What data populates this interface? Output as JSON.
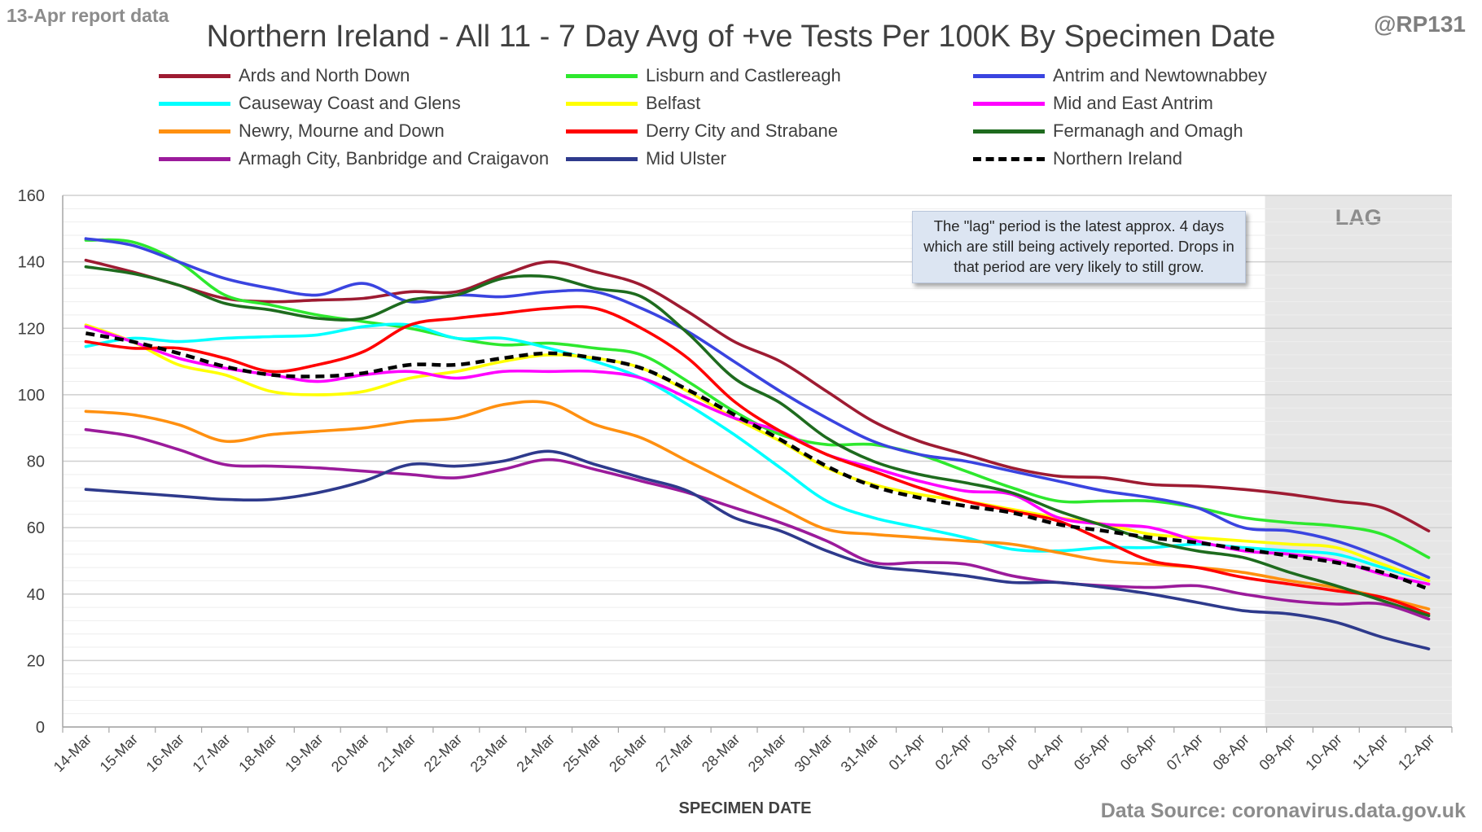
{
  "report_label": "13-Apr report data",
  "title": "Northern Ireland - All 11 - 7 Day Avg of +ve Tests Per 100K By Specimen Date",
  "handle": "@RP131",
  "source": "Data Source: coronavirus.data.gov.uk",
  "note": "The \"lag\" period is the latest approx. 4 days which are still being actively reported. Drops in that period are very likely to still grow.",
  "colors": {
    "lag_band": "#e6e6e6",
    "grid": "#d9d9d9",
    "axis": "#a6a6a6",
    "text": "#404040"
  },
  "chart_data": {
    "type": "line",
    "title": "Northern Ireland - All 11 - 7 Day Avg of +ve Tests Per 100K By Specimen Date",
    "xlabel": "SPECIMEN DATE",
    "ylabel": "",
    "ylim": [
      0,
      160
    ],
    "yticks": [
      0,
      20,
      40,
      60,
      80,
      100,
      120,
      140,
      160
    ],
    "grid": true,
    "legend_position": "top",
    "lag_band": {
      "label": "LAG",
      "from": "09-Apr",
      "to": "12-Apr"
    },
    "x": [
      "14-Mar",
      "15-Mar",
      "16-Mar",
      "17-Mar",
      "18-Mar",
      "19-Mar",
      "20-Mar",
      "21-Mar",
      "22-Mar",
      "23-Mar",
      "24-Mar",
      "25-Mar",
      "26-Mar",
      "27-Mar",
      "28-Mar",
      "29-Mar",
      "30-Mar",
      "31-Mar",
      "01-Apr",
      "02-Apr",
      "03-Apr",
      "04-Apr",
      "05-Apr",
      "06-Apr",
      "07-Apr",
      "08-Apr",
      "09-Apr",
      "10-Apr",
      "11-Apr",
      "12-Apr"
    ],
    "series": [
      {
        "name": "Ards and North Down",
        "color": "#9e1b32",
        "dashed": false,
        "values": [
          140.5,
          137,
          133,
          129,
          128,
          128.5,
          129,
          131,
          131,
          136,
          140,
          137,
          133,
          125,
          116,
          110,
          101,
          92,
          86,
          82,
          78,
          75.5,
          75,
          73,
          72.5,
          71.5,
          70,
          68,
          66,
          59
        ]
      },
      {
        "name": "Lisburn and Castlereagh",
        "color": "#2ee82e",
        "dashed": false,
        "values": [
          146.5,
          146,
          140,
          130,
          127,
          124,
          122,
          120,
          117,
          115,
          115.5,
          114,
          112,
          104,
          95,
          88,
          85,
          85,
          82,
          77,
          72,
          68,
          68,
          68,
          66,
          63,
          61.5,
          60.5,
          58,
          51
        ]
      },
      {
        "name": "Antrim and Newtownabbey",
        "color": "#3a44e0",
        "dashed": false,
        "values": [
          147,
          145,
          140,
          135,
          132,
          130,
          133.5,
          128,
          130,
          129.5,
          131,
          131,
          126,
          119,
          110,
          101,
          93,
          86,
          82,
          80,
          77,
          74,
          71,
          69,
          66,
          60,
          59,
          56,
          51,
          45
        ]
      },
      {
        "name": "Causeway Coast and Glens",
        "color": "#00ffff",
        "dashed": false,
        "values": [
          114.5,
          117,
          116,
          117,
          117.5,
          118,
          120.5,
          121,
          117,
          117,
          114,
          110,
          105,
          97,
          88,
          78,
          68,
          63,
          60,
          57,
          53.5,
          53,
          54,
          54,
          55,
          54,
          53,
          52,
          48,
          44
        ]
      },
      {
        "name": "Belfast",
        "color": "#ffff00",
        "dashed": false,
        "values": [
          121,
          116,
          109,
          106,
          101,
          100,
          101,
          105,
          107,
          110,
          112,
          111,
          108,
          101,
          93,
          86,
          78,
          73,
          70,
          68,
          65.5,
          63,
          61,
          58,
          57,
          56,
          55,
          54,
          49,
          44
        ]
      },
      {
        "name": "Mid and East Antrim",
        "color": "#ff00ff",
        "dashed": false,
        "values": [
          120.5,
          116,
          111,
          108,
          106,
          104,
          106,
          107,
          105,
          107,
          107,
          107,
          105,
          99,
          93,
          89,
          82,
          78,
          74,
          71,
          70,
          63,
          61,
          60,
          56,
          53,
          52,
          50,
          46,
          43
        ]
      },
      {
        "name": "Newry, Mourne and Down",
        "color": "#ff9010",
        "dashed": false,
        "values": [
          95,
          94,
          91,
          86,
          88,
          89,
          90,
          92,
          93,
          97,
          97.5,
          91,
          87,
          80,
          73,
          66,
          59.5,
          58,
          57,
          56,
          55,
          52.5,
          50,
          49,
          48,
          46.5,
          44,
          42,
          39,
          35.5
        ]
      },
      {
        "name": "Derry City and Strabane",
        "color": "#ff0000",
        "dashed": false,
        "values": [
          116,
          114,
          114,
          111,
          107,
          109,
          113,
          121,
          123,
          124.5,
          126,
          126,
          120,
          111,
          98,
          89,
          82,
          77,
          72,
          68,
          65,
          62,
          56,
          50,
          48,
          45,
          43,
          41,
          39,
          34
        ]
      },
      {
        "name": "Fermanagh and Omagh",
        "color": "#1e6b1e",
        "dashed": false,
        "values": [
          138.5,
          136.5,
          133,
          127.5,
          125.5,
          123,
          123,
          128.5,
          130,
          135,
          135.5,
          132,
          129.5,
          118.5,
          105,
          97.5,
          87,
          80,
          76,
          73.5,
          70.5,
          65,
          60.5,
          56,
          53,
          51,
          46.5,
          42.5,
          38,
          33.5
        ]
      },
      {
        "name": "Armagh City, Banbridge and Craigavon",
        "color": "#9b1b9b",
        "dashed": false,
        "values": [
          89.5,
          87.5,
          83.5,
          79,
          78.5,
          78,
          77,
          76,
          75,
          77.5,
          80.5,
          77.5,
          74,
          70.5,
          66,
          61.5,
          56,
          49.5,
          49.5,
          49,
          45.5,
          43.5,
          42.5,
          42,
          42.5,
          40,
          38,
          37,
          37,
          32.5
        ]
      },
      {
        "name": "Mid Ulster",
        "color": "#2e3a8c",
        "dashed": false,
        "values": [
          71.5,
          70.5,
          69.5,
          68.5,
          68.5,
          70.5,
          74,
          79,
          78.5,
          80,
          83,
          79,
          75,
          71,
          63,
          59,
          53,
          48.5,
          47,
          45.5,
          43.5,
          43.5,
          42,
          40,
          37.5,
          35,
          34,
          31.5,
          27,
          23.5
        ]
      },
      {
        "name": "Northern Ireland",
        "color": "#000000",
        "dashed": true,
        "values": [
          118.5,
          116,
          112.5,
          108.5,
          106,
          105.5,
          106.5,
          109,
          109,
          111,
          112.5,
          111,
          108,
          101.5,
          94,
          86.5,
          78.5,
          72.5,
          69,
          66.5,
          64.5,
          61,
          59,
          57,
          55.5,
          53.5,
          51.5,
          49.5,
          46.5,
          41.5
        ]
      }
    ]
  }
}
